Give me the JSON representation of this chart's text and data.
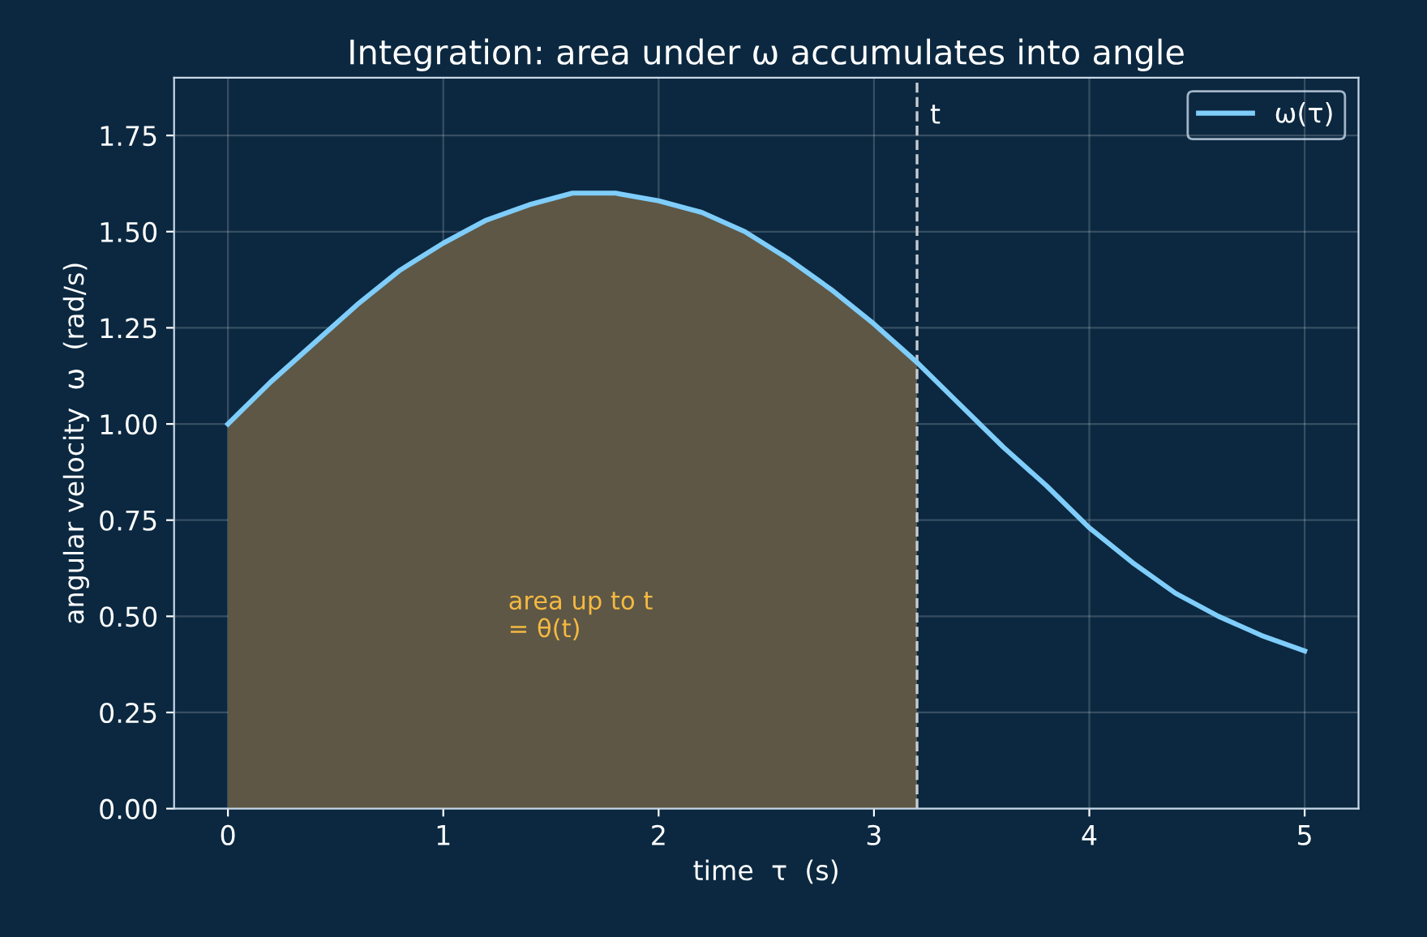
{
  "chart_data": {
    "type": "line",
    "title": "Integration: area under ω accumulates into angle",
    "xlabel": "time  τ  (s)",
    "ylabel": "angular velocity  ω  (rad/s)",
    "series": [
      {
        "type": "area",
        "color": "#5e5745",
        "x": [
          0,
          0.2,
          0.4,
          0.6,
          0.8,
          1.0,
          1.2,
          1.4,
          1.6,
          1.8,
          2.0,
          2.2,
          2.4,
          2.6,
          2.8,
          3.0,
          3.2
        ],
        "values": [
          1.0,
          1.11,
          1.21,
          1.31,
          1.4,
          1.47,
          1.53,
          1.57,
          1.6,
          1.6,
          1.58,
          1.55,
          1.5,
          1.43,
          1.35,
          1.26,
          1.16
        ]
      },
      {
        "name": "ω(τ)",
        "color": "#7fcdfa",
        "x": [
          0,
          0.2,
          0.4,
          0.6,
          0.8,
          1.0,
          1.2,
          1.4,
          1.6,
          1.8,
          2.0,
          2.2,
          2.4,
          2.6,
          2.8,
          3.0,
          3.2,
          3.4,
          3.6,
          3.8,
          4.0,
          4.2,
          4.4,
          4.6,
          4.8,
          5.0
        ],
        "values": [
          1.0,
          1.11,
          1.21,
          1.31,
          1.4,
          1.47,
          1.53,
          1.57,
          1.6,
          1.6,
          1.58,
          1.55,
          1.5,
          1.43,
          1.35,
          1.26,
          1.16,
          1.05,
          0.94,
          0.84,
          0.73,
          0.64,
          0.56,
          0.5,
          0.45,
          0.41
        ]
      }
    ],
    "ref_lines": [
      {
        "axis": "x",
        "value": 3.2,
        "label": "t",
        "color": "#c8ccd0",
        "line_style": "dashed"
      }
    ],
    "annotations": [
      "area up to t\n= θ(t)"
    ],
    "xlim": [
      -0.25,
      5.25
    ],
    "ylim": [
      0,
      1.9
    ],
    "xticks": [
      0,
      1,
      2,
      3,
      4,
      5
    ],
    "yticks": [
      {
        "value": 0,
        "label": "0.00"
      },
      {
        "value": 0.25,
        "label": "0.25"
      },
      {
        "value": 0.5,
        "label": "0.50"
      },
      {
        "value": 0.75,
        "label": "0.75"
      },
      {
        "value": 1.0,
        "label": "1.00"
      },
      {
        "value": 1.25,
        "label": "1.25"
      },
      {
        "value": 1.5,
        "label": "1.50"
      },
      {
        "value": 1.75,
        "label": "1.75"
      }
    ],
    "grid": true,
    "legend": "top right",
    "marker": "none",
    "line_style": "solid"
  }
}
